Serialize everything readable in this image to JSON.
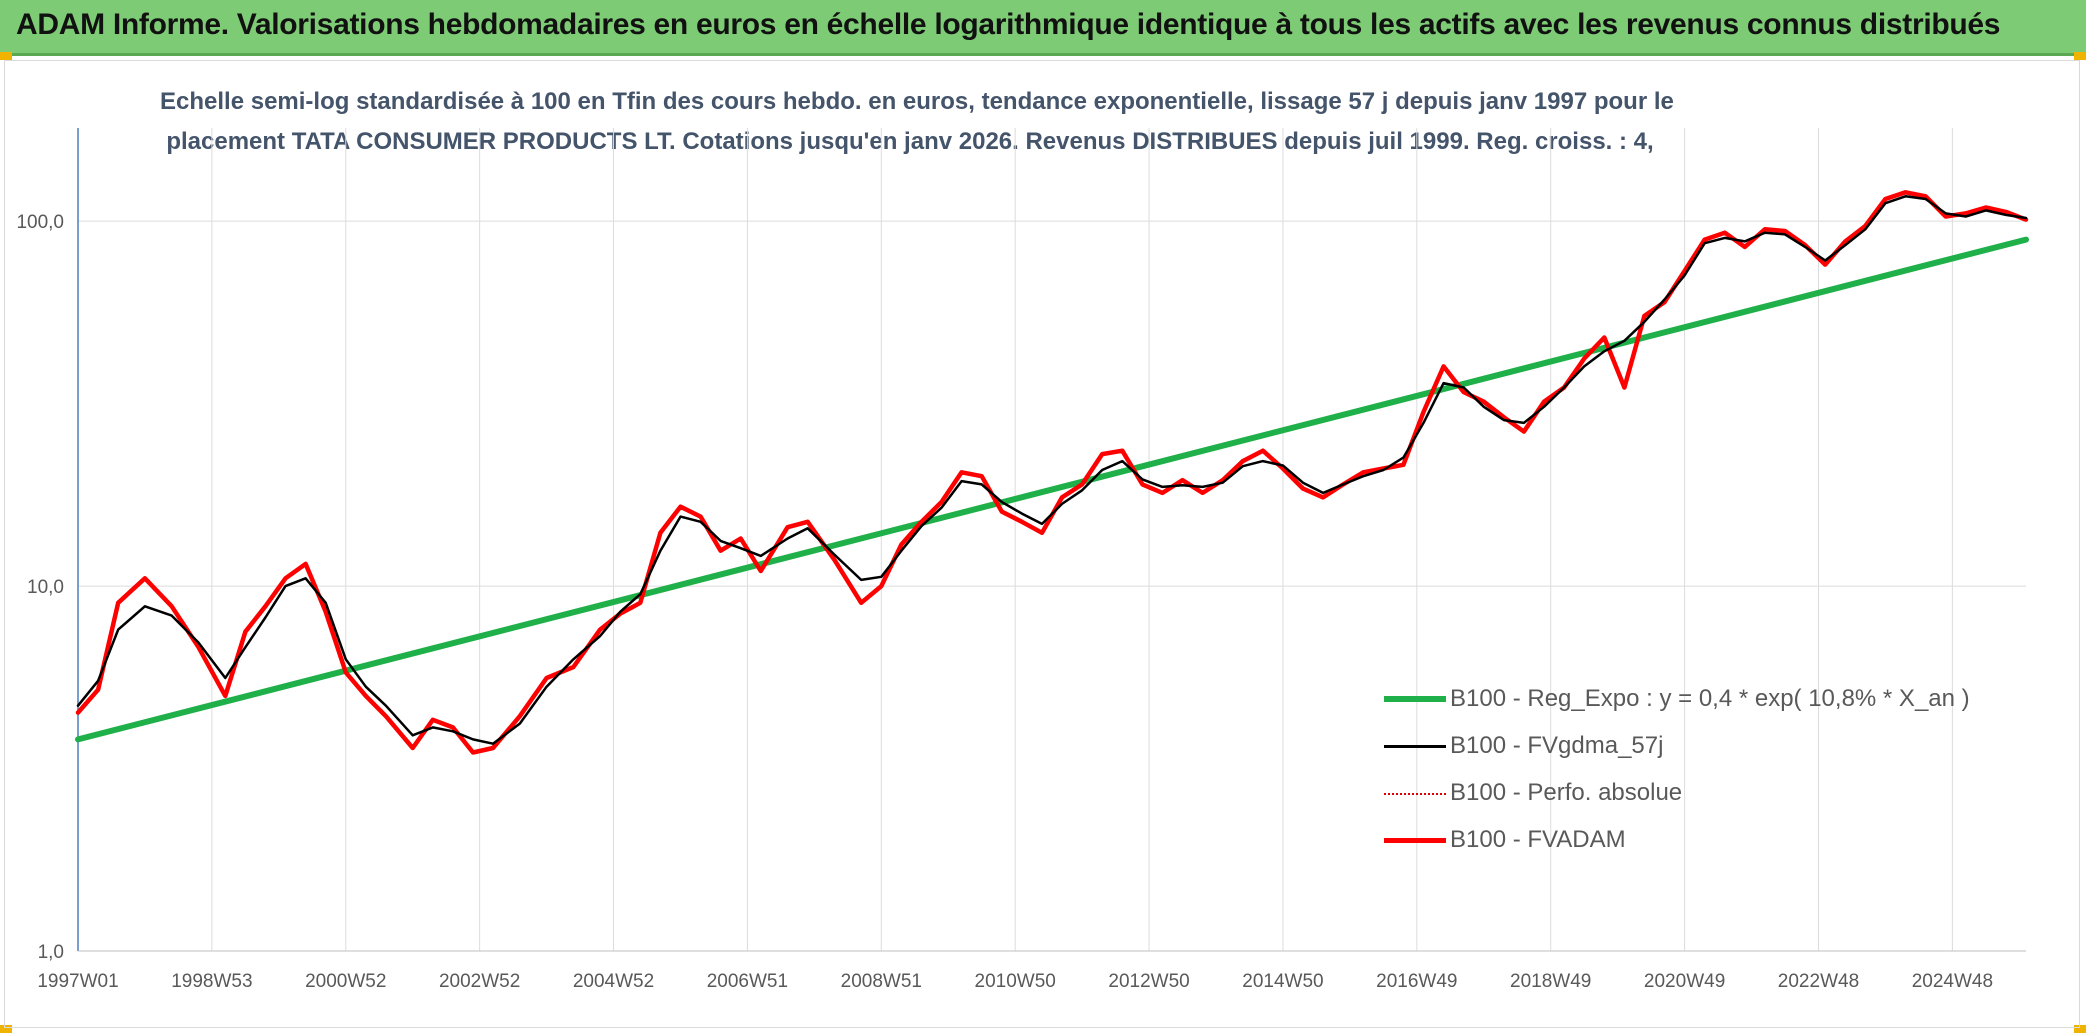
{
  "header": {
    "title": "ADAM Informe. Valorisations hebdomadaires en euros en échelle logarithmique identique à tous les actifs avec les revenus connus distribués"
  },
  "chart_data": {
    "type": "line",
    "subtitle_line1": "Echelle semi-log standardisée à 100 en Tfin des cours hebdo. en euros, tendance exponentielle, lissage 57 j depuis janv 1997 pour le",
    "subtitle_line2": "placement TATA CONSUMER PRODUCTS LT. Cotations jusqu'en janv 2026. Revenus DISTRIBUES depuis juil 1999. Reg. croiss. : 4,",
    "y_scale": "log",
    "ylim": [
      1,
      180
    ],
    "y_ticks": [
      {
        "value": 1,
        "label": "1,0"
      },
      {
        "value": 10,
        "label": "10,0"
      },
      {
        "value": 100,
        "label": "100,0"
      }
    ],
    "xlim": [
      1997.0,
      2026.1
    ],
    "x_ticks": [
      {
        "value": 1997.0,
        "label": "1997W01"
      },
      {
        "value": 1999.0,
        "label": "1998W53"
      },
      {
        "value": 2001.0,
        "label": "2000W52"
      },
      {
        "value": 2003.0,
        "label": "2002W52"
      },
      {
        "value": 2005.0,
        "label": "2004W52"
      },
      {
        "value": 2007.0,
        "label": "2006W51"
      },
      {
        "value": 2009.0,
        "label": "2008W51"
      },
      {
        "value": 2011.0,
        "label": "2010W50"
      },
      {
        "value": 2013.0,
        "label": "2012W50"
      },
      {
        "value": 2015.0,
        "label": "2014W50"
      },
      {
        "value": 2017.0,
        "label": "2016W49"
      },
      {
        "value": 2019.0,
        "label": "2018W49"
      },
      {
        "value": 2021.0,
        "label": "2020W49"
      },
      {
        "value": 2023.0,
        "label": "2022W48"
      },
      {
        "value": 2025.0,
        "label": "2024W48"
      }
    ],
    "grid": true,
    "legend_position": "bottom-right",
    "series": [
      {
        "name": "B100 - Reg_Expo : y = 0,4 * exp( 10,8% *  X_an )",
        "color": "#1fb04a",
        "style": "solid-thick",
        "x": [
          1997.0,
          2026.1
        ],
        "y": [
          3.8,
          89
        ]
      },
      {
        "name": "B100 - FVgdma_57j",
        "color": "#000000",
        "style": "solid",
        "x": [
          1997.0,
          1997.3,
          1997.6,
          1998.0,
          1998.4,
          1998.8,
          1999.2,
          1999.5,
          1999.8,
          2000.1,
          2000.4,
          2000.7,
          2001.0,
          2001.3,
          2001.6,
          2002.0,
          2002.3,
          2002.6,
          2002.9,
          2003.2,
          2003.6,
          2004.0,
          2004.4,
          2004.8,
          2005.1,
          2005.4,
          2005.7,
          2006.0,
          2006.3,
          2006.6,
          2006.9,
          2007.2,
          2007.6,
          2007.9,
          2008.3,
          2008.7,
          2009.0,
          2009.3,
          2009.6,
          2009.9,
          2010.2,
          2010.5,
          2010.8,
          2011.1,
          2011.4,
          2011.7,
          2012.0,
          2012.3,
          2012.6,
          2012.9,
          2013.2,
          2013.5,
          2013.8,
          2014.1,
          2014.4,
          2014.7,
          2015.0,
          2015.3,
          2015.6,
          2015.9,
          2016.2,
          2016.5,
          2016.8,
          2017.1,
          2017.4,
          2017.7,
          2018.0,
          2018.3,
          2018.6,
          2018.9,
          2019.2,
          2019.5,
          2019.8,
          2020.1,
          2020.4,
          2020.7,
          2021.0,
          2021.3,
          2021.6,
          2021.9,
          2022.2,
          2022.5,
          2022.8,
          2023.1,
          2023.4,
          2023.7,
          2024.0,
          2024.3,
          2024.6,
          2024.9,
          2025.2,
          2025.5,
          2025.8,
          2026.1
        ],
        "y": [
          4.7,
          5.5,
          7.6,
          8.8,
          8.3,
          7.0,
          5.6,
          6.8,
          8.2,
          10.0,
          10.5,
          9.0,
          6.3,
          5.3,
          4.7,
          3.9,
          4.1,
          4.0,
          3.8,
          3.7,
          4.2,
          5.3,
          6.3,
          7.3,
          8.5,
          9.5,
          12.5,
          15.5,
          15.0,
          13.3,
          12.7,
          12.1,
          13.5,
          14.4,
          12.2,
          10.4,
          10.6,
          12.5,
          14.6,
          16.4,
          19.4,
          19.0,
          17.0,
          15.8,
          14.8,
          16.8,
          18.3,
          20.8,
          22.0,
          19.6,
          18.7,
          18.9,
          18.7,
          19.2,
          21.3,
          22.0,
          21.4,
          19.2,
          18.0,
          19.0,
          20.0,
          20.8,
          22.5,
          28.0,
          36.0,
          35.0,
          31.0,
          28.5,
          28.0,
          31.0,
          35.0,
          40.0,
          44.0,
          47.0,
          53.0,
          61.0,
          71.0,
          87.0,
          90.0,
          88.0,
          93.0,
          92.0,
          85.0,
          78.0,
          86.0,
          95.0,
          112.0,
          117.0,
          115.0,
          105.0,
          103.0,
          107.0,
          104.0,
          102.0
        ]
      },
      {
        "name": "B100 - Perfo. absolue",
        "color": "#e00000",
        "style": "dotted",
        "x": [],
        "y": []
      },
      {
        "name": "B100 - FVADAM",
        "color": "#ff0000",
        "style": "solid-thick",
        "x": [
          1997.0,
          1997.3,
          1997.6,
          1998.0,
          1998.4,
          1998.8,
          1999.2,
          1999.5,
          1999.8,
          2000.1,
          2000.4,
          2000.7,
          2001.0,
          2001.3,
          2001.6,
          2002.0,
          2002.3,
          2002.6,
          2002.9,
          2003.2,
          2003.6,
          2004.0,
          2004.4,
          2004.8,
          2005.1,
          2005.4,
          2005.7,
          2006.0,
          2006.3,
          2006.6,
          2006.9,
          2007.2,
          2007.6,
          2007.9,
          2008.3,
          2008.7,
          2009.0,
          2009.3,
          2009.6,
          2009.9,
          2010.2,
          2010.5,
          2010.8,
          2011.1,
          2011.4,
          2011.7,
          2012.0,
          2012.3,
          2012.6,
          2012.9,
          2013.2,
          2013.5,
          2013.8,
          2014.1,
          2014.4,
          2014.7,
          2015.0,
          2015.3,
          2015.6,
          2015.9,
          2016.2,
          2016.5,
          2016.8,
          2017.1,
          2017.4,
          2017.7,
          2018.0,
          2018.3,
          2018.6,
          2018.9,
          2019.2,
          2019.5,
          2019.8,
          2020.1,
          2020.4,
          2020.7,
          2021.0,
          2021.3,
          2021.6,
          2021.9,
          2022.2,
          2022.5,
          2022.8,
          2023.1,
          2023.4,
          2023.7,
          2024.0,
          2024.3,
          2024.6,
          2024.9,
          2025.2,
          2025.5,
          2025.8,
          2026.1
        ],
        "y": [
          4.5,
          5.2,
          9.0,
          10.5,
          8.8,
          6.8,
          5.0,
          7.5,
          8.8,
          10.5,
          11.5,
          8.5,
          5.8,
          5.0,
          4.4,
          3.6,
          4.3,
          4.1,
          3.5,
          3.6,
          4.4,
          5.6,
          6.0,
          7.6,
          8.4,
          9.0,
          14.0,
          16.5,
          15.5,
          12.5,
          13.5,
          11.0,
          14.5,
          15.0,
          11.8,
          9.0,
          10.0,
          13.0,
          15.0,
          17.0,
          20.5,
          20.0,
          16.0,
          15.0,
          14.0,
          17.5,
          19.0,
          23.0,
          23.5,
          19.0,
          18.0,
          19.5,
          18.0,
          19.5,
          22.0,
          23.5,
          21.0,
          18.5,
          17.5,
          19.0,
          20.5,
          21.0,
          21.5,
          30.0,
          40.0,
          34.0,
          32.0,
          29.0,
          26.5,
          32.0,
          35.0,
          42.0,
          48.0,
          35.0,
          55.0,
          60.0,
          73.0,
          89.0,
          93.0,
          85.0,
          95.0,
          94.0,
          86.0,
          76.0,
          88.0,
          97.0,
          115.0,
          120.0,
          117.0,
          103.0,
          105.0,
          109.0,
          106.0,
          101.0
        ]
      }
    ]
  }
}
